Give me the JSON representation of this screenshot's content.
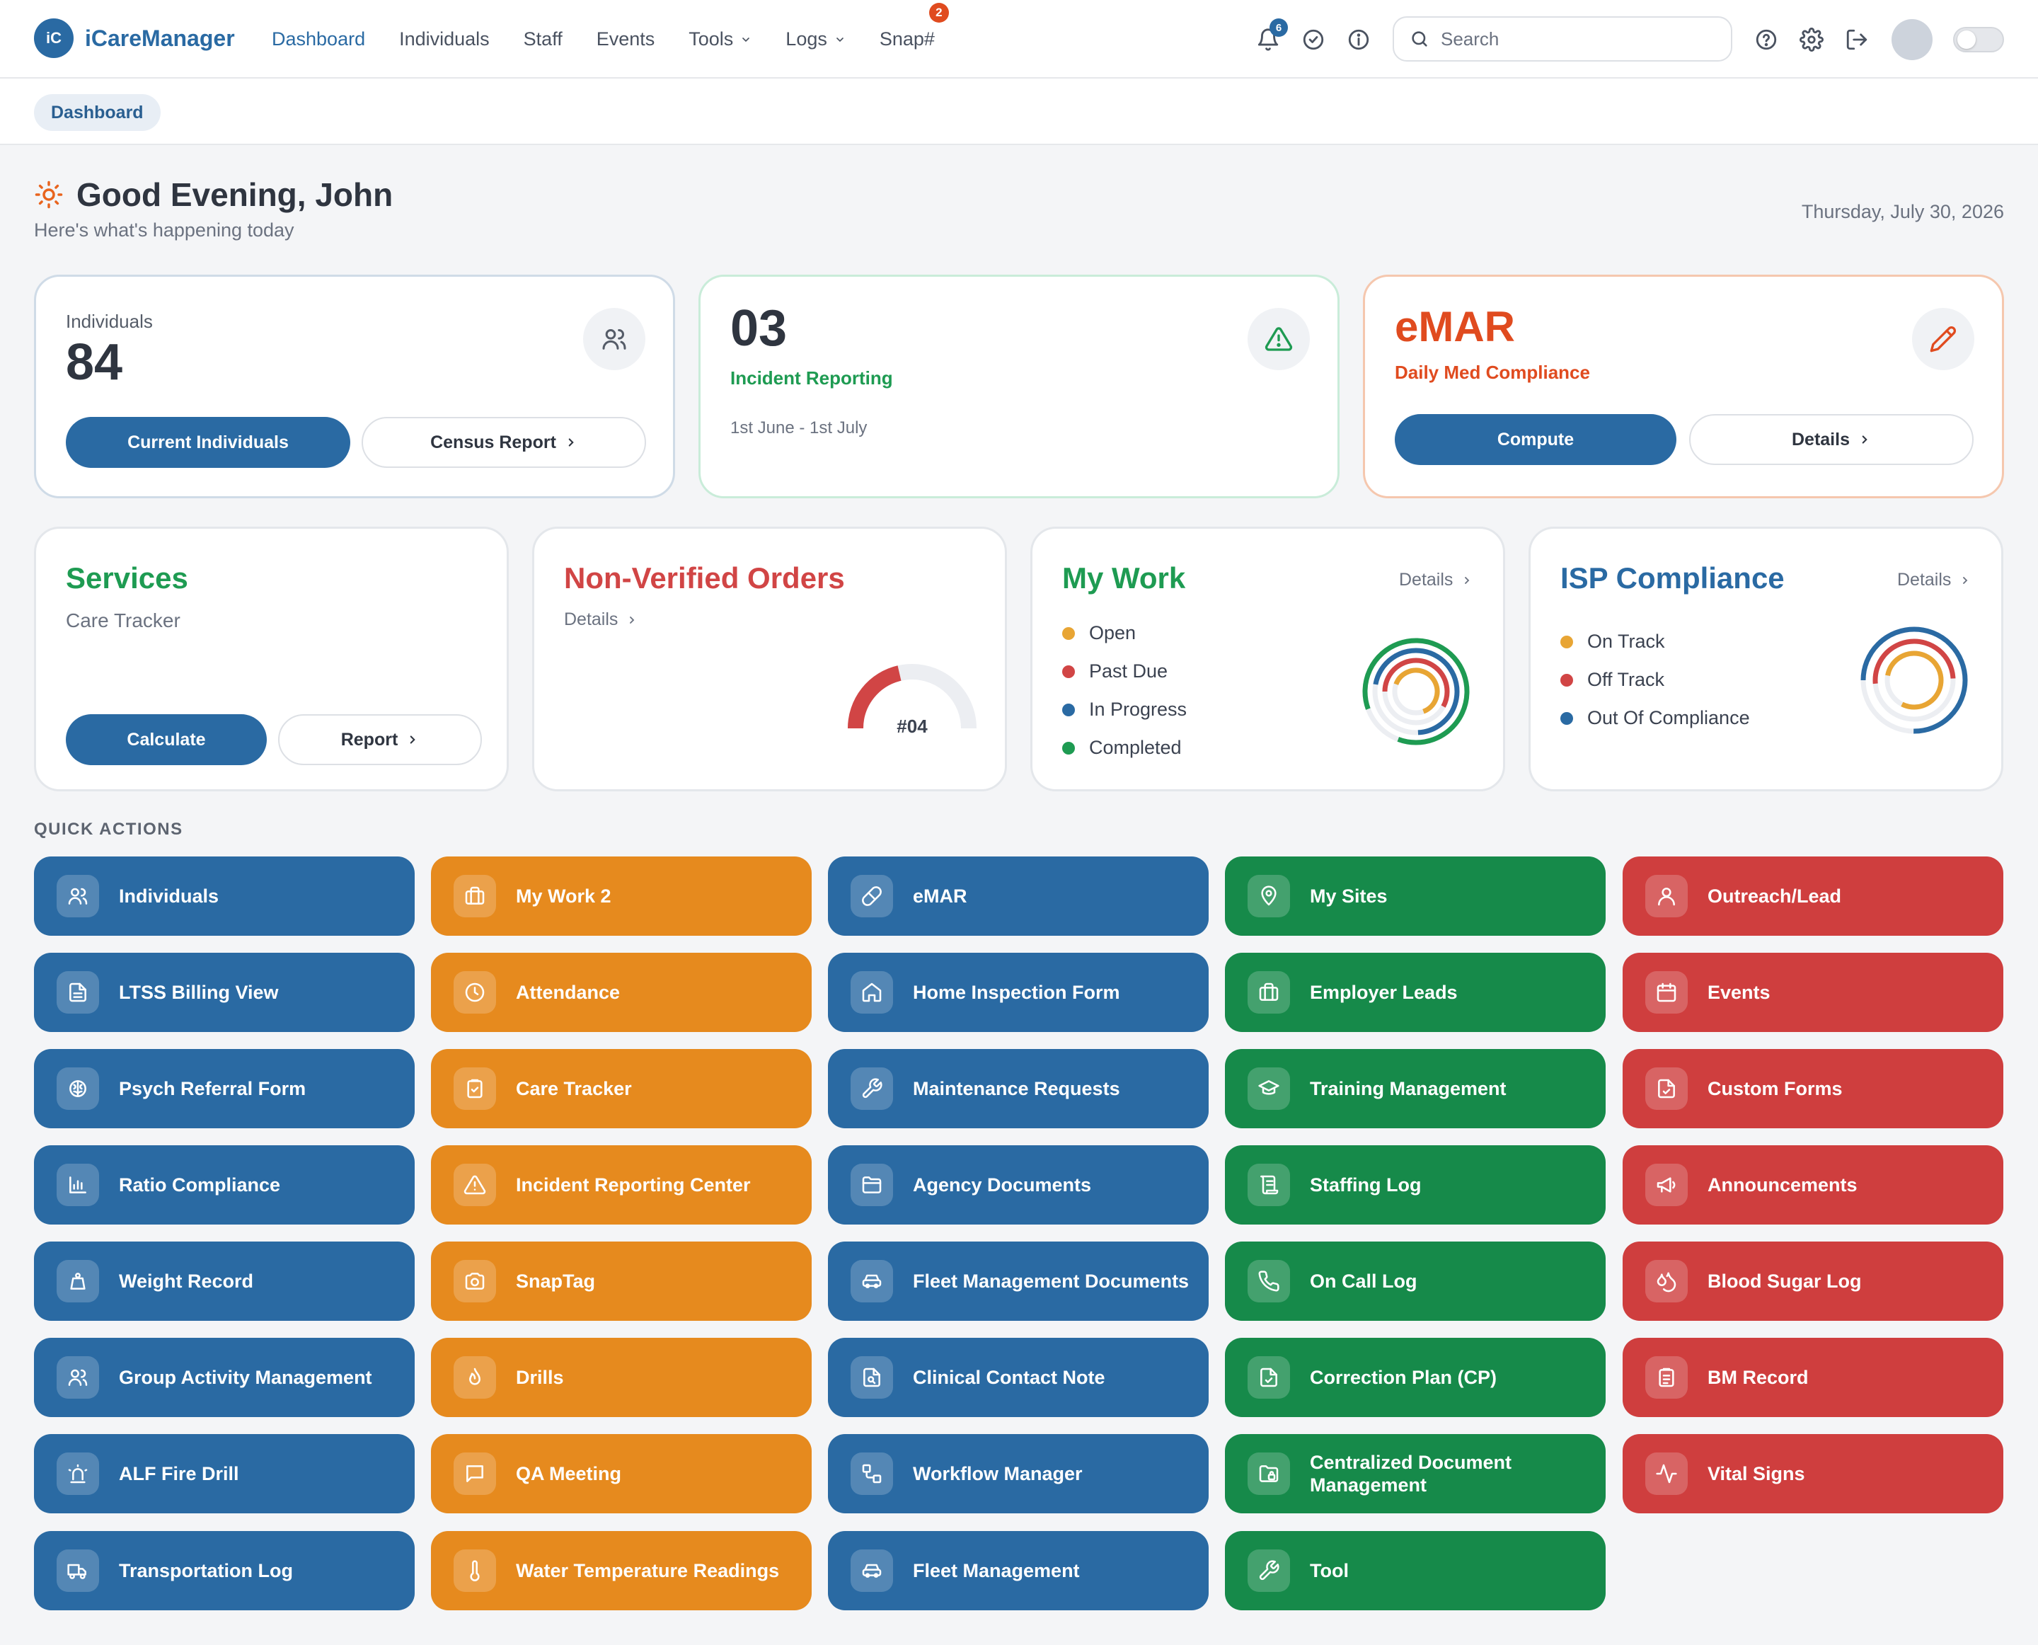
{
  "app": {
    "logo_mark": "iC",
    "name": "iCareManager"
  },
  "nav": {
    "links": [
      {
        "label": "Dashboard",
        "active": true
      },
      {
        "label": "Staff"
      },
      {
        "label": "Individuals"
      },
      {
        "label": "Events"
      },
      {
        "label": "Tools",
        "dropdown": true
      },
      {
        "label": "Logs",
        "dropdown": true
      },
      {
        "label": "Snap#",
        "badge": "2"
      }
    ],
    "notifications_badge": "6",
    "search_placeholder": "Search"
  },
  "breadcrumb": "Dashboard",
  "greeting": {
    "title": "Good Evening, John",
    "subtitle": "Here's what's happening today",
    "date": "Thursday, July 30, 2026"
  },
  "cards": {
    "individuals": {
      "label": "Individuals",
      "count": "84",
      "primary_btn": "Current Individuals",
      "secondary_btn": "Census Report"
    },
    "incident": {
      "count": "03",
      "title": "Incident Reporting",
      "range": "1st June - 1st July"
    },
    "emar": {
      "title": "eMAR",
      "subtitle": "Daily Med Compliance",
      "primary_btn": "Compute",
      "secondary_btn": "Details"
    },
    "services": {
      "title": "Services",
      "subtitle": "Care Tracker",
      "primary_btn": "Calculate",
      "secondary_btn": "Report"
    },
    "non_verified": {
      "title": "Non-Verified Orders",
      "details": "Details",
      "gauge_label": "#04"
    },
    "my_work": {
      "title": "My Work",
      "details": "Details",
      "legend": [
        {
          "label": "Open",
          "color": "#e8a534"
        },
        {
          "label": "Past Due",
          "color": "#d14545"
        },
        {
          "label": "In Progress",
          "color": "#2a6aa3"
        },
        {
          "label": "Completed",
          "color": "#1e9b52"
        }
      ]
    },
    "isp": {
      "title": "ISP Compliance",
      "details": "Details",
      "legend": [
        {
          "label": "On Track",
          "color": "#e8a534"
        },
        {
          "label": "Off Track",
          "color": "#d14545"
        },
        {
          "label": "Out Of Compliance",
          "color": "#2a6aa3"
        }
      ]
    }
  },
  "colors": {
    "blue": "#2a6aa3",
    "orange": "#e68a1e",
    "green": "#168a4a",
    "red": "#cf3e3e"
  },
  "quick_actions": {
    "title": "QUICK ACTIONS",
    "columns": [
      {
        "color": "blue",
        "items": [
          {
            "label": "Individuals",
            "icon": "users-icon"
          },
          {
            "label": "LTSS Billing View",
            "icon": "file-text-icon"
          },
          {
            "label": "Psych Referral Form",
            "icon": "brain-icon"
          },
          {
            "label": "Ratio Compliance",
            "icon": "bar-chart-icon"
          },
          {
            "label": "Weight Record",
            "icon": "scale-icon"
          },
          {
            "label": "Group Activity Management",
            "icon": "users-icon"
          },
          {
            "label": "ALF Fire Drill",
            "icon": "siren-icon"
          },
          {
            "label": "Transportation Log",
            "icon": "truck-icon"
          }
        ]
      },
      {
        "color": "orange",
        "items": [
          {
            "label": "My Work 2",
            "icon": "briefcase-icon"
          },
          {
            "label": "Attendance",
            "icon": "clock-icon"
          },
          {
            "label": "Care Tracker",
            "icon": "clipboard-icon"
          },
          {
            "label": "Incident Reporting Center",
            "icon": "warning-icon"
          },
          {
            "label": "SnapTag",
            "icon": "camera-icon"
          },
          {
            "label": "Drills",
            "icon": "flame-icon"
          },
          {
            "label": "QA Meeting",
            "icon": "chat-icon"
          },
          {
            "label": "Water Temperature Readings",
            "icon": "thermometer-icon"
          }
        ]
      },
      {
        "color": "blue",
        "items": [
          {
            "label": "eMAR",
            "icon": "pill-icon"
          },
          {
            "label": "Home Inspection Form",
            "icon": "home-icon"
          },
          {
            "label": "Maintenance Requests",
            "icon": "wrench-icon"
          },
          {
            "label": "Agency Documents",
            "icon": "folder-icon"
          },
          {
            "label": "Fleet Management Documents",
            "icon": "car-icon"
          },
          {
            "label": "Clinical Contact Note",
            "icon": "file-search-icon"
          },
          {
            "label": "Workflow Manager",
            "icon": "workflow-icon"
          },
          {
            "label": "Fleet Management",
            "icon": "car-icon"
          }
        ]
      },
      {
        "color": "green",
        "items": [
          {
            "label": "My Sites",
            "icon": "map-pin-icon"
          },
          {
            "label": "Employer Leads",
            "icon": "briefcase-icon"
          },
          {
            "label": "Training Management",
            "icon": "graduation-cap-icon"
          },
          {
            "label": "Staffing Log",
            "icon": "scroll-icon"
          },
          {
            "label": "On Call Log",
            "icon": "phone-icon"
          },
          {
            "label": "Correction Plan (CP)",
            "icon": "file-check-icon"
          },
          {
            "label": "Centralized Document Management",
            "icon": "folder-lock-icon"
          },
          {
            "label": "Tool",
            "icon": "wrench-icon"
          }
        ]
      },
      {
        "color": "red",
        "items": [
          {
            "label": "Outreach/Lead",
            "icon": "user-icon"
          },
          {
            "label": "Events",
            "icon": "calendar-icon"
          },
          {
            "label": "Custom Forms",
            "icon": "file-icon"
          },
          {
            "label": "Announcements",
            "icon": "megaphone-icon"
          },
          {
            "label": "Blood Sugar Log",
            "icon": "droplets-icon"
          },
          {
            "label": "BM Record",
            "icon": "clipboard-list-icon"
          },
          {
            "label": "Vital Signs",
            "icon": "activity-icon"
          }
        ]
      }
    ]
  }
}
